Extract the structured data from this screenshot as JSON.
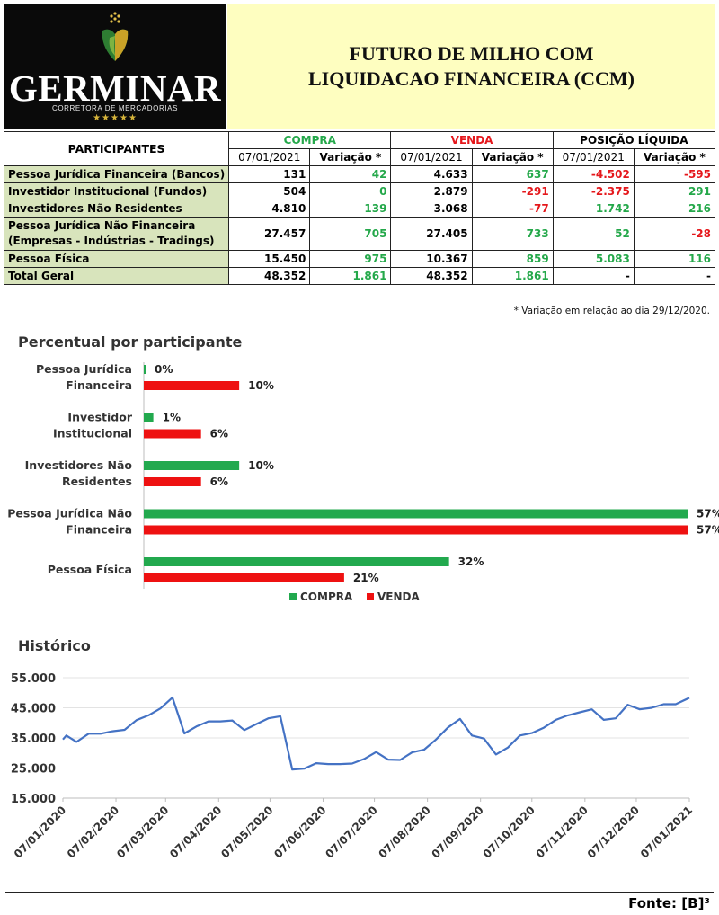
{
  "header": {
    "logo_name": "GERMINAR",
    "logo_subtitle": "CORRETORA DE MERCADORIAS",
    "logo_stars": "★★★★★",
    "title_line1": "FUTURO DE MILHO COM",
    "title_line2": "LIQUIDACAO FINANCEIRA (CCM)"
  },
  "table": {
    "participants_header": "PARTICIPANTES",
    "groups": [
      {
        "label": "COMPRA",
        "color": "#24a84a"
      },
      {
        "label": "VENDA",
        "color": "#e5171b"
      },
      {
        "label": "POSIÇÃO LÍQUIDA",
        "color": "#000000"
      }
    ],
    "sub_date": "07/01/2021",
    "sub_var": "Variação *",
    "rows": [
      {
        "label": "Pessoa Jurídica Financeira (Bancos)",
        "compra": "131",
        "compra_var": "42",
        "venda": "4.633",
        "venda_var": "637",
        "liq": "-4.502",
        "liq_var": "-595"
      },
      {
        "label": "Investidor Institucional (Fundos)",
        "compra": "504",
        "compra_var": "0",
        "venda": "2.879",
        "venda_var": "-291",
        "liq": "-2.375",
        "liq_var": "291"
      },
      {
        "label": "Investidores Não Residentes",
        "compra": "4.810",
        "compra_var": "139",
        "venda": "3.068",
        "venda_var": "-77",
        "liq": "1.742",
        "liq_var": "216"
      },
      {
        "label_line1": "Pessoa Jurídica Não Financeira",
        "label_line2": "(Empresas - Indústrias - Tradings)",
        "compra": "27.457",
        "compra_var": "705",
        "venda": "27.405",
        "venda_var": "733",
        "liq": "52",
        "liq_var": "-28"
      },
      {
        "label": "Pessoa Física",
        "compra": "15.450",
        "compra_var": "975",
        "venda": "10.367",
        "venda_var": "859",
        "liq": "5.083",
        "liq_var": "116"
      },
      {
        "label": "Total Geral",
        "compra": "48.352",
        "compra_var": "1.861",
        "venda": "48.352",
        "venda_var": "1.861",
        "liq": "-",
        "liq_var": "-"
      }
    ],
    "note": "* Variação em relação ao dia 29/12/2020."
  },
  "chart_data": [
    {
      "type": "bar",
      "orientation": "horizontal",
      "title": "Percentual por participante",
      "categories": [
        [
          "Pessoa Jurídica",
          "Financeira"
        ],
        [
          "Investidor",
          "Institucional"
        ],
        [
          "Investidores Não",
          "Residentes"
        ],
        [
          "Pessoa Jurídica Não",
          "Financeira"
        ],
        [
          "Pessoa Física"
        ]
      ],
      "series": [
        {
          "name": "COMPRA",
          "color": "#22a94e",
          "values": [
            0,
            1,
            10,
            57,
            32
          ]
        },
        {
          "name": "VENDA",
          "color": "#ee1111",
          "values": [
            10,
            6,
            6,
            57,
            21
          ]
        }
      ],
      "value_suffix": "%",
      "legend": "bottom"
    },
    {
      "type": "line",
      "title": "Histórico",
      "color": "#4472c4",
      "ylim": [
        15000,
        55000
      ],
      "y_ticks": [
        "15.000",
        "25.000",
        "35.000",
        "45.000",
        "55.000"
      ],
      "y_tick_values": [
        15000,
        25000,
        35000,
        45000,
        55000
      ],
      "x_tick_labels": [
        "07/01/2020",
        "07/02/2020",
        "07/03/2020",
        "07/04/2020",
        "07/05/2020",
        "07/06/2020",
        "07/07/2020",
        "07/08/2020",
        "07/09/2020",
        "07/10/2020",
        "07/11/2020",
        "07/12/2020",
        "07/01/2021"
      ],
      "x_span": [
        "07/01/2020",
        "07/01/2021"
      ],
      "points": [
        [
          "07/01/2020",
          34500
        ],
        [
          "09/01/2020",
          35800
        ],
        [
          "15/01/2020",
          33700
        ],
        [
          "22/01/2020",
          36400
        ],
        [
          "29/01/2020",
          36400
        ],
        [
          "05/02/2020",
          37200
        ],
        [
          "12/02/2020",
          37700
        ],
        [
          "19/02/2020",
          40900
        ],
        [
          "26/02/2020",
          42500
        ],
        [
          "04/03/2020",
          44800
        ],
        [
          "11/03/2020",
          48400
        ],
        [
          "18/03/2020",
          36500
        ],
        [
          "25/03/2020",
          38800
        ],
        [
          "01/04/2020",
          40500
        ],
        [
          "08/04/2020",
          40500
        ],
        [
          "15/04/2020",
          40800
        ],
        [
          "22/04/2020",
          37600
        ],
        [
          "29/04/2020",
          39600
        ],
        [
          "06/05/2020",
          41500
        ],
        [
          "13/05/2020",
          42200
        ],
        [
          "20/05/2020",
          24500
        ],
        [
          "27/05/2020",
          24800
        ],
        [
          "03/06/2020",
          26600
        ],
        [
          "10/06/2020",
          26300
        ],
        [
          "17/06/2020",
          26300
        ],
        [
          "24/06/2020",
          26500
        ],
        [
          "01/07/2020",
          28000
        ],
        [
          "08/07/2020",
          30300
        ],
        [
          "15/07/2020",
          27800
        ],
        [
          "22/07/2020",
          27700
        ],
        [
          "29/07/2020",
          30200
        ],
        [
          "05/08/2020",
          31100
        ],
        [
          "12/08/2020",
          34500
        ],
        [
          "19/08/2020",
          38500
        ],
        [
          "26/08/2020",
          41300
        ],
        [
          "02/09/2020",
          35800
        ],
        [
          "09/09/2020",
          34800
        ],
        [
          "16/09/2020",
          29500
        ],
        [
          "23/09/2020",
          31800
        ],
        [
          "30/09/2020",
          35800
        ],
        [
          "07/10/2020",
          36600
        ],
        [
          "14/10/2020",
          38400
        ],
        [
          "21/10/2020",
          41000
        ],
        [
          "28/10/2020",
          42500
        ],
        [
          "04/11/2020",
          43500
        ],
        [
          "11/11/2020",
          44500
        ],
        [
          "18/11/2020",
          41000
        ],
        [
          "25/11/2020",
          41500
        ],
        [
          "02/12/2020",
          46000
        ],
        [
          "09/12/2020",
          44500
        ],
        [
          "16/12/2020",
          45000
        ],
        [
          "23/12/2020",
          46200
        ],
        [
          "30/12/2020",
          46200
        ],
        [
          "07/01/2021",
          48300
        ]
      ]
    }
  ],
  "footer": {
    "source": "Fonte: [B]³"
  }
}
